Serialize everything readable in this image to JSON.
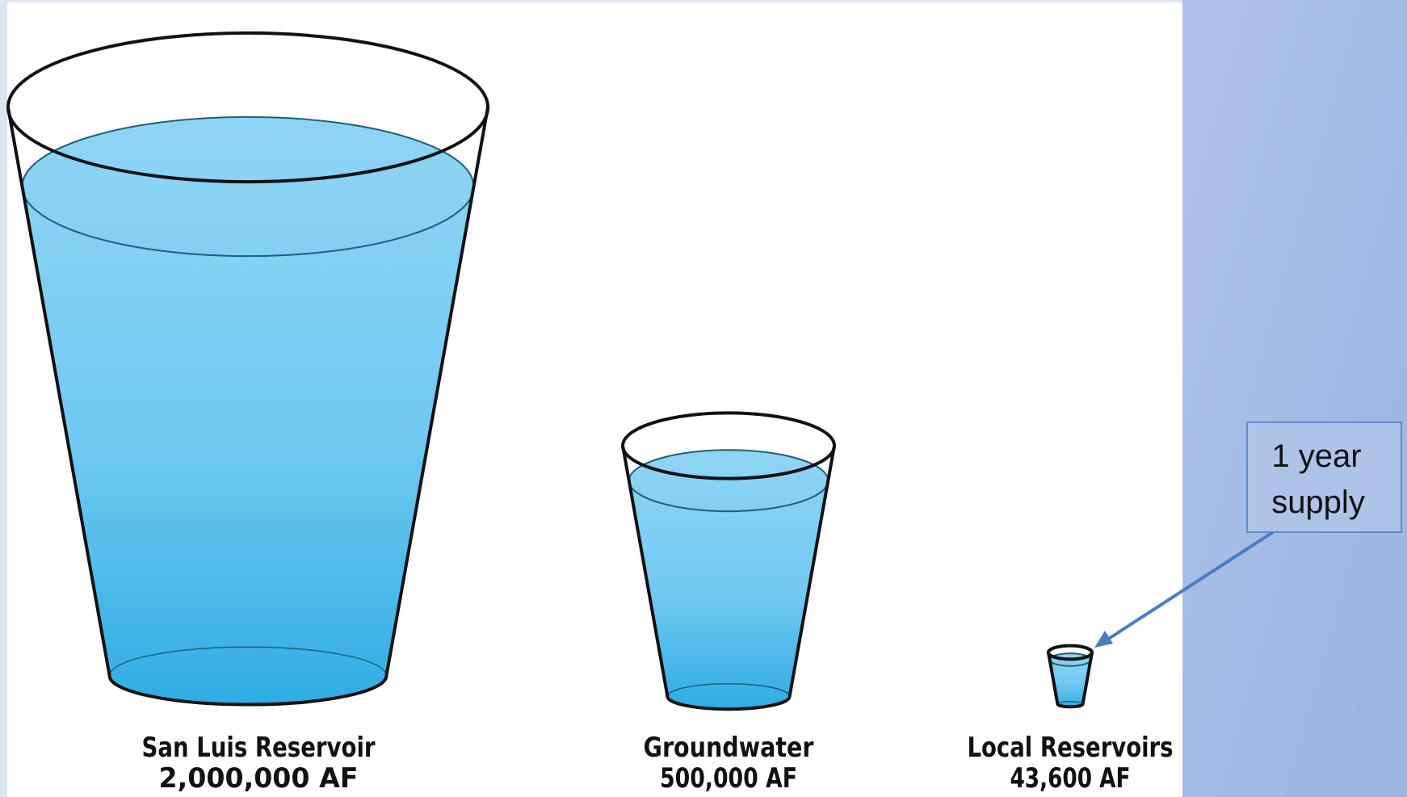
{
  "items": [
    {
      "label": "San Luis Reservoir",
      "amount": "2,000,000 AF"
    },
    {
      "label": "Groundwater",
      "amount": "500,000 AF"
    },
    {
      "label": "Local Reservoirs",
      "amount": "43,600 AF"
    }
  ],
  "callout": {
    "lines": [
      "1 year",
      "supply"
    ]
  }
}
